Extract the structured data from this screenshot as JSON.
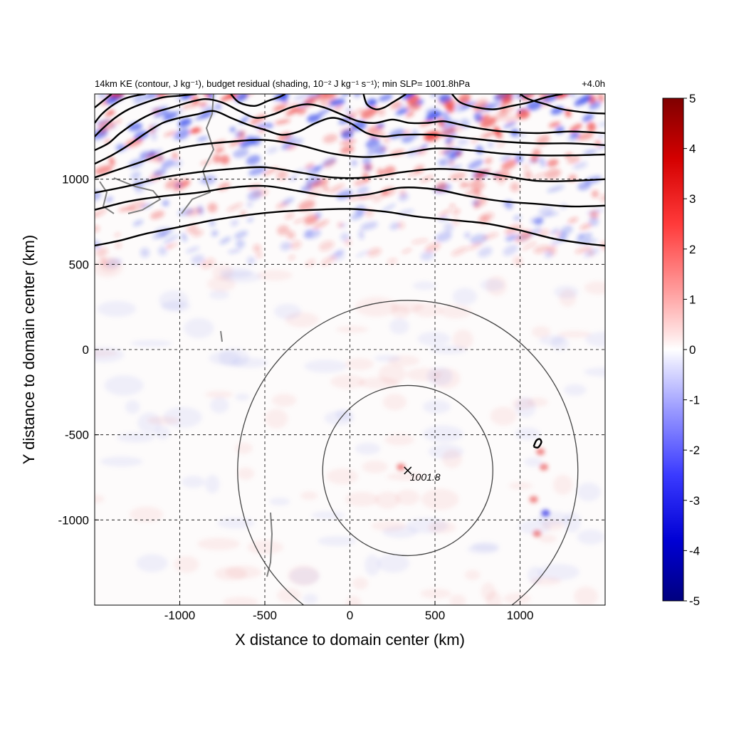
{
  "chart_data": {
    "type": "heatmap",
    "title": "14km KE (contour, J kg⁻¹), budget residual (shading, 10⁻² J kg⁻¹ s⁻¹); min SLP= 1001.8hPa",
    "time_label": "+4.0h",
    "xlabel": "X distance to domain center (km)",
    "ylabel": "Y distance to domain center (km)",
    "xlim": [
      -1500,
      1500
    ],
    "ylim": [
      -1500,
      1500
    ],
    "x_ticks": [
      -1000,
      -500,
      0,
      500,
      1000
    ],
    "y_ticks": [
      -1000,
      -500,
      0,
      500,
      1000
    ],
    "x_tick_labels": [
      "-1000",
      "-500",
      "0",
      "500",
      "1000"
    ],
    "y_tick_labels": [
      "-1000",
      "-500",
      "0",
      "500",
      "1000"
    ],
    "grid": true,
    "colorbar": {
      "min": -5,
      "max": 5,
      "ticks": [
        5,
        4,
        3,
        2,
        1,
        0,
        -1,
        -2,
        -3,
        -4,
        -5
      ],
      "tick_labels": [
        "5",
        "4",
        "3",
        "2",
        "1",
        "0",
        "-1",
        "-2",
        "-3",
        "-4",
        "-5"
      ],
      "colormap": "blue-white-red",
      "color_low": "#00007f",
      "color_mid": "#ffffff",
      "color_high": "#7f0000"
    },
    "storm_center": {
      "x": 340,
      "y": -710,
      "label": "1001.8"
    },
    "range_circles_km": [
      500,
      1000
    ],
    "ke_contours": [
      {
        "points": [
          [
            -1500,
            610
          ],
          [
            -1350,
            640
          ],
          [
            -1200,
            680
          ],
          [
            -1000,
            720
          ],
          [
            -800,
            760
          ],
          [
            -600,
            790
          ],
          [
            -400,
            810
          ],
          [
            -200,
            820
          ],
          [
            0,
            825
          ],
          [
            200,
            810
          ],
          [
            400,
            780
          ],
          [
            600,
            760
          ],
          [
            800,
            740
          ],
          [
            1000,
            700
          ],
          [
            1200,
            650
          ],
          [
            1400,
            620
          ],
          [
            1500,
            610
          ]
        ]
      },
      {
        "points": [
          [
            -1500,
            820
          ],
          [
            -1300,
            870
          ],
          [
            -1100,
            900
          ],
          [
            -900,
            920
          ],
          [
            -700,
            950
          ],
          [
            -500,
            960
          ],
          [
            -300,
            930
          ],
          [
            -100,
            900
          ],
          [
            100,
            910
          ],
          [
            300,
            950
          ],
          [
            500,
            940
          ],
          [
            700,
            900
          ],
          [
            900,
            870
          ],
          [
            1100,
            855
          ],
          [
            1300,
            840
          ],
          [
            1500,
            845
          ]
        ]
      },
      {
        "points": [
          [
            -1500,
            920
          ],
          [
            -1300,
            960
          ],
          [
            -1100,
            1010
          ],
          [
            -900,
            1040
          ],
          [
            -700,
            1060
          ],
          [
            -500,
            1070
          ],
          [
            -300,
            1040
          ],
          [
            -100,
            1010
          ],
          [
            100,
            1010
          ],
          [
            300,
            1040
          ],
          [
            500,
            1060
          ],
          [
            700,
            1050
          ],
          [
            900,
            1020
          ],
          [
            1100,
            990
          ],
          [
            1300,
            990
          ],
          [
            1500,
            1000
          ]
        ]
      },
      {
        "points": [
          [
            -1500,
            1010
          ],
          [
            -1350,
            1060
          ],
          [
            -1200,
            1110
          ],
          [
            -1050,
            1170
          ],
          [
            -900,
            1200
          ],
          [
            -700,
            1220
          ],
          [
            -500,
            1230
          ],
          [
            -300,
            1200
          ],
          [
            -100,
            1150
          ],
          [
            100,
            1130
          ],
          [
            300,
            1150
          ],
          [
            500,
            1180
          ],
          [
            700,
            1170
          ],
          [
            900,
            1150
          ],
          [
            1100,
            1140
          ],
          [
            1300,
            1140
          ],
          [
            1500,
            1145
          ]
        ]
      },
      {
        "points": [
          [
            -1500,
            1090
          ],
          [
            -1400,
            1140
          ],
          [
            -1300,
            1200
          ],
          [
            -1200,
            1270
          ],
          [
            -1100,
            1330
          ],
          [
            -1000,
            1360
          ],
          [
            -900,
            1380
          ],
          [
            -800,
            1400
          ],
          [
            -700,
            1360
          ],
          [
            -600,
            1320
          ],
          [
            -500,
            1290
          ],
          [
            -400,
            1260
          ],
          [
            -300,
            1280
          ],
          [
            -200,
            1330
          ],
          [
            -100,
            1360
          ],
          [
            0,
            1330
          ],
          [
            100,
            1270
          ],
          [
            200,
            1250
          ],
          [
            300,
            1260
          ],
          [
            500,
            1260
          ],
          [
            700,
            1240
          ],
          [
            900,
            1220
          ],
          [
            1100,
            1210
          ],
          [
            1300,
            1210
          ],
          [
            1500,
            1200
          ]
        ]
      },
      {
        "points": [
          [
            -1500,
            1170
          ],
          [
            -1420,
            1210
          ],
          [
            -1350,
            1270
          ],
          [
            -1250,
            1340
          ],
          [
            -1150,
            1390
          ],
          [
            -1050,
            1420
          ],
          [
            -950,
            1450
          ],
          [
            -850,
            1470
          ],
          [
            -750,
            1450
          ],
          [
            -650,
            1400
          ],
          [
            -550,
            1360
          ],
          [
            -450,
            1380
          ],
          [
            -350,
            1420
          ],
          [
            -250,
            1440
          ],
          [
            -150,
            1420
          ],
          [
            -50,
            1380
          ],
          [
            50,
            1340
          ],
          [
            150,
            1330
          ],
          [
            250,
            1350
          ],
          [
            350,
            1330
          ],
          [
            450,
            1330
          ],
          [
            550,
            1340
          ],
          [
            650,
            1320
          ],
          [
            750,
            1300
          ],
          [
            900,
            1280
          ],
          [
            1100,
            1270
          ],
          [
            1300,
            1280
          ],
          [
            1500,
            1270
          ]
        ]
      },
      {
        "points": [
          [
            -1500,
            1250
          ],
          [
            -1450,
            1300
          ],
          [
            -1380,
            1360
          ],
          [
            -1300,
            1410
          ],
          [
            -1200,
            1450
          ],
          [
            -1100,
            1480
          ],
          [
            -1000,
            1490
          ],
          [
            -900,
            1500
          ]
        ]
      },
      {
        "points": [
          [
            -1500,
            1330
          ],
          [
            -1460,
            1380
          ],
          [
            -1400,
            1430
          ],
          [
            -1330,
            1470
          ],
          [
            -1260,
            1490
          ],
          [
            -1200,
            1500
          ]
        ]
      },
      {
        "points": [
          [
            -1500,
            1420
          ],
          [
            -1450,
            1460
          ],
          [
            -1400,
            1500
          ]
        ]
      },
      {
        "points": [
          [
            -700,
            1500
          ],
          [
            -650,
            1450
          ],
          [
            -560,
            1430
          ],
          [
            -480,
            1460
          ],
          [
            -420,
            1480
          ],
          [
            -380,
            1500
          ]
        ]
      },
      {
        "points": [
          [
            80,
            1500
          ],
          [
            100,
            1440
          ],
          [
            150,
            1410
          ],
          [
            200,
            1420
          ],
          [
            250,
            1450
          ],
          [
            300,
            1480
          ],
          [
            330,
            1500
          ]
        ]
      },
      {
        "points": [
          [
            600,
            1500
          ],
          [
            650,
            1450
          ],
          [
            750,
            1420
          ],
          [
            850,
            1410
          ],
          [
            950,
            1430
          ],
          [
            1050,
            1450
          ],
          [
            1150,
            1480
          ],
          [
            1250,
            1500
          ]
        ]
      },
      {
        "points": [
          [
            1000,
            1500
          ],
          [
            1050,
            1470
          ],
          [
            1150,
            1440
          ],
          [
            1250,
            1410
          ],
          [
            1400,
            1390
          ],
          [
            1500,
            1385
          ]
        ]
      },
      {
        "points": [
          [
            1080,
            -570
          ],
          [
            1095,
            -535
          ],
          [
            1115,
            -525
          ],
          [
            1125,
            -545
          ],
          [
            1105,
            -575
          ],
          [
            1080,
            -570
          ]
        ]
      }
    ]
  }
}
